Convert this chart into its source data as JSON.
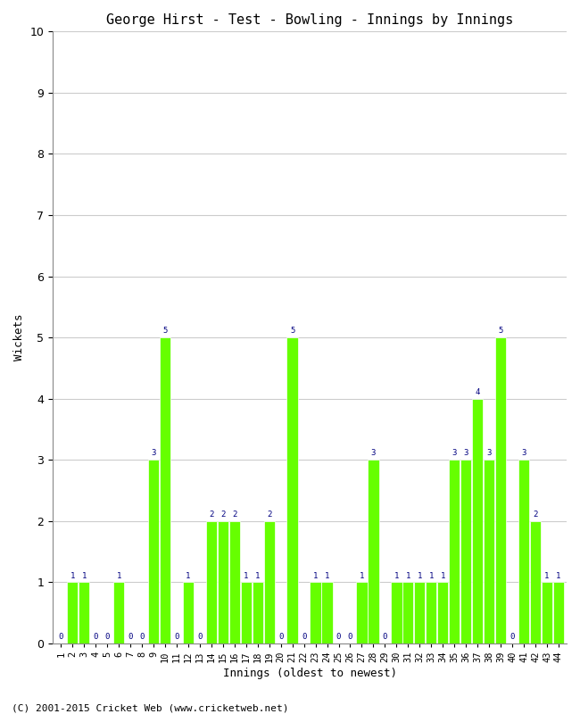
{
  "title": "George Hirst - Test - Bowling - Innings by Innings",
  "xlabel": "Innings (oldest to newest)",
  "ylabel": "Wickets",
  "ylim": [
    0,
    10
  ],
  "yticks": [
    0,
    1,
    2,
    3,
    4,
    5,
    6,
    7,
    8,
    9,
    10
  ],
  "bar_color": "#66ff00",
  "bar_edge_color": "#66ff00",
  "label_color": "#000080",
  "background_color": "#ffffff",
  "footer": "(C) 2001-2015 Cricket Web (www.cricketweb.net)",
  "innings": [
    1,
    2,
    3,
    4,
    5,
    6,
    7,
    8,
    9,
    10,
    11,
    12,
    13,
    14,
    15,
    16,
    17,
    18,
    19,
    20,
    21,
    22,
    23,
    24,
    25,
    26,
    27,
    28,
    29,
    30,
    31,
    32,
    33,
    34,
    35,
    36,
    37,
    38,
    39,
    40,
    41,
    42,
    43,
    44
  ],
  "wickets": [
    0,
    1,
    1,
    0,
    0,
    1,
    0,
    0,
    3,
    5,
    0,
    1,
    0,
    2,
    2,
    2,
    1,
    1,
    2,
    0,
    5,
    0,
    1,
    1,
    0,
    0,
    1,
    3,
    0,
    1,
    1,
    1,
    1,
    1,
    3,
    3,
    4,
    3,
    5,
    0,
    3,
    2,
    1,
    1
  ]
}
